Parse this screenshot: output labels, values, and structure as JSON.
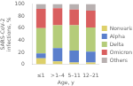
{
  "chart_data": {
    "type": "bar",
    "stacked": true,
    "categories": [
      "≤1",
      ">1–4",
      "5–11",
      "12–21"
    ],
    "series": [
      {
        "name": "Nonvariant",
        "color": "#ddd06a",
        "values": [
          10,
          5,
          3,
          3
        ]
      },
      {
        "name": "Alpha",
        "color": "#5b7fcc",
        "values": [
          8,
          22,
          20,
          18
        ]
      },
      {
        "name": "Delta",
        "color": "#b5cc7a",
        "values": [
          42,
          38,
          42,
          40
        ]
      },
      {
        "name": "Omicron",
        "color": "#d95f5f",
        "values": [
          32,
          28,
          26,
          28
        ]
      },
      {
        "name": "Others",
        "color": "#b8b0b0",
        "values": [
          8,
          7,
          9,
          11
        ]
      }
    ],
    "xlabel": "Age, y",
    "ylabel": "SARS-CoV-2\ninfections, %",
    "ylim": [
      0,
      100
    ],
    "yticks": [
      0,
      20,
      40,
      60,
      80,
      100
    ],
    "grid": false,
    "legend": "right"
  }
}
